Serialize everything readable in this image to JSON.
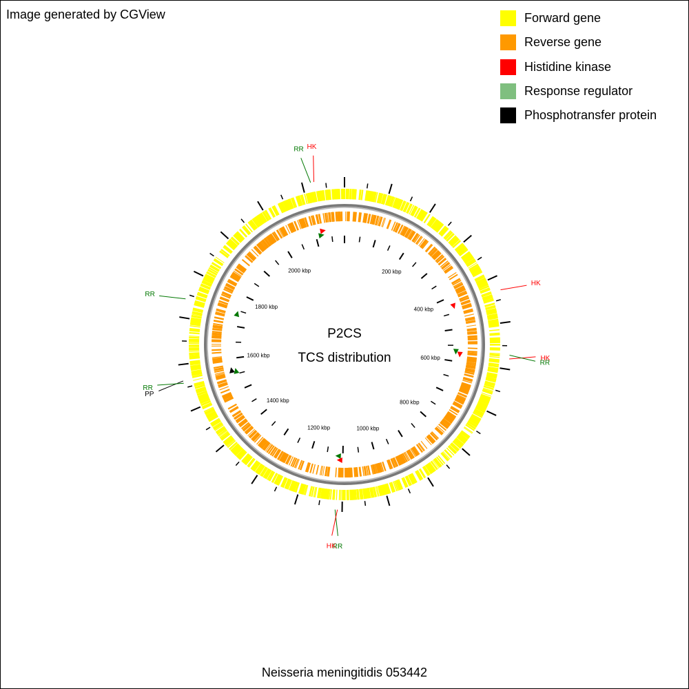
{
  "credit": "Image generated by CGView",
  "legend": [
    {
      "label": "Forward gene",
      "color": "#ffff00"
    },
    {
      "label": "Reverse gene",
      "color": "#ff9900"
    },
    {
      "label": "Histidine kinase",
      "color": "#ff0000"
    },
    {
      "label": "Response regulator",
      "color": "#7fbf7f"
    },
    {
      "label": "Phosphotransfer protein",
      "color": "#000000"
    }
  ],
  "center": {
    "line1": "P2CS",
    "line2": "TCS distribution"
  },
  "organism": "Neisseria meningitidis 053442",
  "map": {
    "genome_length_kbp": 2190,
    "tick_labels": [
      {
        "kbp": 200,
        "text": "200 kbp"
      },
      {
        "kbp": 400,
        "text": "400 kbp"
      },
      {
        "kbp": 600,
        "text": "600 kbp"
      },
      {
        "kbp": 800,
        "text": "800 kbp"
      },
      {
        "kbp": 1000,
        "text": "1000 kbp"
      },
      {
        "kbp": 1200,
        "text": "1200 kbp"
      },
      {
        "kbp": 1400,
        "text": "1400 kbp"
      },
      {
        "kbp": 1600,
        "text": "1600 kbp"
      },
      {
        "kbp": 1800,
        "text": "1800 kbp"
      },
      {
        "kbp": 2000,
        "text": "2000 kbp"
      }
    ],
    "features": [
      {
        "type": "HK",
        "kbp": 2125,
        "label": "HK",
        "color": "#ff0000"
      },
      {
        "type": "RR",
        "kbp": 2118,
        "label": "RR",
        "color": "#007700"
      },
      {
        "type": "HK",
        "kbp": 430,
        "label": "HK",
        "color": "#ff0000"
      },
      {
        "type": "HK",
        "kbp": 578,
        "label": "HK",
        "color": "#ff0000"
      },
      {
        "type": "RR",
        "kbp": 570,
        "label": "RR",
        "color": "#007700"
      },
      {
        "type": "RR",
        "kbp": 1115,
        "label": "RR",
        "color": "#007700"
      },
      {
        "type": "HK",
        "kbp": 1110,
        "label": "HK",
        "color": "#ff0000"
      },
      {
        "type": "PP",
        "kbp": 1565,
        "label": "PP",
        "color": "#000000"
      },
      {
        "type": "RR",
        "kbp": 1560,
        "label": "RR",
        "color": "#007700"
      },
      {
        "type": "RR",
        "kbp": 1740,
        "label": "RR",
        "color": "#007700"
      }
    ]
  }
}
